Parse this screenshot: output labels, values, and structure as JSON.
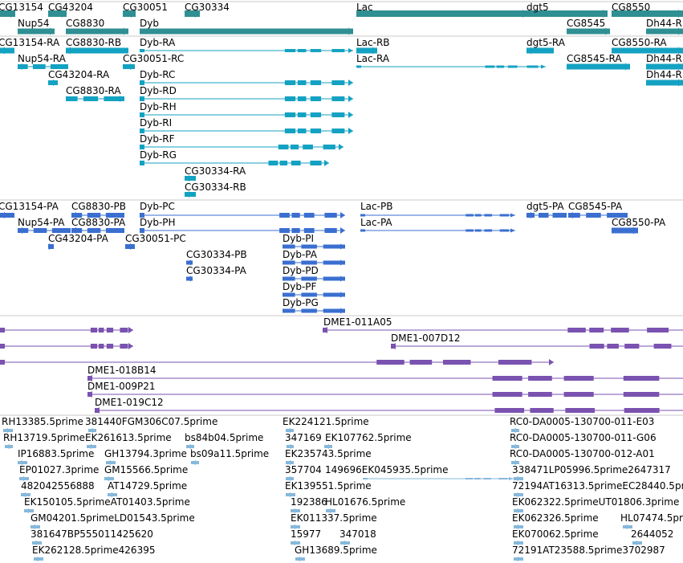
{
  "colors": {
    "gene": "#2f8f93",
    "rna": "#14a2c2",
    "protein": "#3a6fd0",
    "clone": "#7a52b0",
    "est": "#86b8db",
    "divider": "#c8c8c8"
  },
  "tracks": [
    {
      "id": "gene",
      "color_key": "gene",
      "items": [
        {
          "name": "CG13154",
          "row": 0
        },
        {
          "name": "CG43204",
          "row": 0
        },
        {
          "name": "CG30051",
          "row": 0
        },
        {
          "name": "CG30334",
          "row": 0
        },
        {
          "name": "Lac",
          "row": 0
        },
        {
          "name": "dgt5",
          "row": 0
        },
        {
          "name": "CG8550",
          "row": 0
        },
        {
          "name": "Nup54",
          "row": 1
        },
        {
          "name": "CG8830",
          "row": 1
        },
        {
          "name": "Dyb",
          "row": 1
        },
        {
          "name": "CG8545",
          "row": 1
        },
        {
          "name": "Dh44-R",
          "row": 1
        }
      ]
    },
    {
      "id": "rna",
      "color_key": "rna",
      "items": [
        {
          "name": "CG13154-RA"
        },
        {
          "name": "CG8830-RB"
        },
        {
          "name": "Dyb-RA"
        },
        {
          "name": "Lac-RB"
        },
        {
          "name": "dgt5-RA"
        },
        {
          "name": "CG8550-RA"
        },
        {
          "name": "Nup54-RA"
        },
        {
          "name": "CG30051-RC"
        },
        {
          "name": "Lac-RA"
        },
        {
          "name": "CG8545-RA"
        },
        {
          "name": "Dh44-R"
        },
        {
          "name": "CG43204-RA"
        },
        {
          "name": "Dyb-RC"
        },
        {
          "name": "Dh44-R"
        },
        {
          "name": "CG8830-RA"
        },
        {
          "name": "Dyb-RD"
        },
        {
          "name": "Dyb-RH"
        },
        {
          "name": "Dyb-RI"
        },
        {
          "name": "Dyb-RF"
        },
        {
          "name": "Dyb-RG"
        },
        {
          "name": "CG30334-RA"
        },
        {
          "name": "CG30334-RB"
        }
      ]
    },
    {
      "id": "protein",
      "color_key": "protein",
      "items": [
        {
          "name": "CG13154-PA"
        },
        {
          "name": "CG8830-PB"
        },
        {
          "name": "Dyb-PC"
        },
        {
          "name": "Lac-PB"
        },
        {
          "name": "dgt5-PA"
        },
        {
          "name": "CG8545-PA"
        },
        {
          "name": "Nup54-PA"
        },
        {
          "name": "CG8830-PA"
        },
        {
          "name": "Dyb-PH"
        },
        {
          "name": "Lac-PA"
        },
        {
          "name": "CG8550-PA"
        },
        {
          "name": "CG43204-PA"
        },
        {
          "name": "CG30051-PC"
        },
        {
          "name": "Dyb-PI"
        },
        {
          "name": "CG30334-PB"
        },
        {
          "name": "Dyb-PA"
        },
        {
          "name": "CG30334-PA"
        },
        {
          "name": "Dyb-PD"
        },
        {
          "name": "Dyb-PF"
        },
        {
          "name": "Dyb-PG"
        }
      ]
    },
    {
      "id": "clone",
      "color_key": "clone",
      "items": [
        {
          "name": "DME1-011A05"
        },
        {
          "name": "DME1-007D12"
        },
        {
          "name": "DME1-018B14"
        },
        {
          "name": "DME1-009P21"
        },
        {
          "name": "DME1-019C12"
        }
      ]
    },
    {
      "id": "est",
      "color_key": "est",
      "items": [
        {
          "name": "RH13385.5prime"
        },
        {
          "name": "381440FGM306C07.5prime"
        },
        {
          "name": "EK224121.5prime"
        },
        {
          "name": "RC0-DA0005-130700-011-E03"
        },
        {
          "name": "RH13719.5prime"
        },
        {
          "name": "EK261613.5prime"
        },
        {
          "name": "bs84b04.5prime"
        },
        {
          "name": "347169"
        },
        {
          "name": "EK107762.5prime"
        },
        {
          "name": "RC0-DA0005-130700-011-G06"
        },
        {
          "name": "IP16883.5prime"
        },
        {
          "name": "GH13794.3prime"
        },
        {
          "name": "bs09a11.5prime"
        },
        {
          "name": "EK235743.5prime"
        },
        {
          "name": "RC0-DA0005-130700-012-A01"
        },
        {
          "name": "EP01027.3prime"
        },
        {
          "name": "GM15566.5prime"
        },
        {
          "name": "357704"
        },
        {
          "name": "149696EK045935.5prime"
        },
        {
          "name": "338471LP05996.5prime2647317"
        },
        {
          "name": "482042556888"
        },
        {
          "name": "AT14729.5prime"
        },
        {
          "name": "EK139551.5prime"
        },
        {
          "name": "72194AT16313.5primeEC28440.5prime"
        },
        {
          "name": "EK150105.5primeAT01403.5prime"
        },
        {
          "name": "192386"
        },
        {
          "name": "HL01676.5prime"
        },
        {
          "name": "EK062322.5primeUT01806.3prime"
        },
        {
          "name": "GM04201.5primeLD01543.5prime"
        },
        {
          "name": "EK011337.5prime"
        },
        {
          "name": "EK062326.5prime"
        },
        {
          "name": "HL07474.5prime"
        },
        {
          "name": "381647BP555011425620"
        },
        {
          "name": "15977"
        },
        {
          "name": "347018"
        },
        {
          "name": "EK070062.5prime"
        },
        {
          "name": "2644052"
        },
        {
          "name": "EK262128.5prime426395"
        },
        {
          "name": "GH13689.5prime"
        },
        {
          "name": "72191AT23588.5prime3702987"
        }
      ]
    }
  ]
}
